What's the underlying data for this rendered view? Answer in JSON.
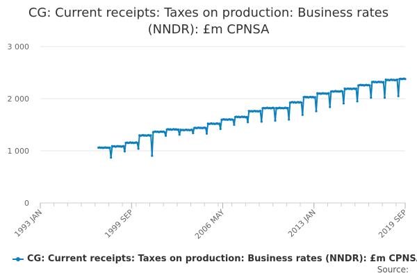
{
  "title_line1": "CG: Current receipts: Taxes on production: Business rates",
  "title_line2": "(NNDR): £m CPNSA",
  "source_label": "Source:",
  "chart_data": {
    "type": "line",
    "title": "CG: Current receipts: Taxes on production: Business rates (NNDR): £m CPNSA",
    "xlabel": "",
    "ylabel": "",
    "x_range": [
      "1993 JAN",
      "2019 SEP"
    ],
    "ylim": [
      0,
      3000
    ],
    "y_ticks": [
      0,
      1000,
      2000,
      3000
    ],
    "y_tick_labels": [
      "0",
      "1 000",
      "2 000",
      "3 000"
    ],
    "x_tick_labels": [
      "1993 JAN",
      "1999 SEP",
      "2006 MAY",
      "2013 JAN",
      "2019 SEP"
    ],
    "grid": "horizontal",
    "legend_position": "bottom",
    "color": "#0b7fbf",
    "series": [
      {
        "name": "CG: Current receipts: Taxes on production: Business rates (NNDR): £m CPNSA",
        "values_by_fiscal_year": [
          {
            "start": "1997 APR",
            "typical": 1060,
            "dips": [
              {
                "month": 11,
                "value": 870
              }
            ]
          },
          {
            "start": "1998 APR",
            "typical": 1085,
            "dips": [
              {
                "month": 11,
                "value": 990
              }
            ]
          },
          {
            "start": "1999 APR",
            "typical": 1155,
            "dips": [
              {
                "month": 11,
                "value": 1040
              }
            ]
          },
          {
            "start": "2000 APR",
            "typical": 1295,
            "dips": [
              {
                "month": 11,
                "value": 905
              }
            ]
          },
          {
            "start": "2001 APR",
            "typical": 1365,
            "dips": [
              {
                "month": 11,
                "value": 1290
              }
            ]
          },
          {
            "start": "2002 APR",
            "typical": 1410,
            "dips": [
              {
                "month": 11,
                "value": 1310
              }
            ]
          },
          {
            "start": "2003 APR",
            "typical": 1400,
            "dips": [
              {
                "month": 11,
                "value": 1340
              }
            ]
          },
          {
            "start": "2004 APR",
            "typical": 1440,
            "dips": [
              {
                "month": 11,
                "value": 1330
              }
            ]
          },
          {
            "start": "2005 APR",
            "typical": 1520,
            "dips": [
              {
                "month": 11,
                "value": 1420
              }
            ]
          },
          {
            "start": "2006 APR",
            "typical": 1600,
            "dips": [
              {
                "month": 11,
                "value": 1500
              }
            ]
          },
          {
            "start": "2007 APR",
            "typical": 1650,
            "dips": [
              {
                "month": 11,
                "value": 1550
              }
            ]
          },
          {
            "start": "2008 APR",
            "typical": 1760,
            "dips": [
              {
                "month": 11,
                "value": 1560
              }
            ]
          },
          {
            "start": "2009 APR",
            "typical": 1820,
            "dips": [
              {
                "month": 11,
                "value": 1580
              }
            ]
          },
          {
            "start": "2010 APR",
            "typical": 1820,
            "dips": [
              {
                "month": 11,
                "value": 1600
              }
            ]
          },
          {
            "start": "2011 APR",
            "typical": 1930,
            "dips": [
              {
                "month": 11,
                "value": 1690
              }
            ]
          },
          {
            "start": "2012 APR",
            "typical": 2030,
            "dips": [
              {
                "month": 11,
                "value": 1760
              }
            ]
          },
          {
            "start": "2013 APR",
            "typical": 2100,
            "dips": [
              {
                "month": 11,
                "value": 1840
              }
            ]
          },
          {
            "start": "2014 APR",
            "typical": 2140,
            "dips": [
              {
                "month": 11,
                "value": 1910
              }
            ]
          },
          {
            "start": "2015 APR",
            "typical": 2190,
            "dips": [
              {
                "month": 11,
                "value": 1950
              }
            ]
          },
          {
            "start": "2016 APR",
            "typical": 2260,
            "dips": [
              {
                "month": 11,
                "value": 2020
              }
            ]
          },
          {
            "start": "2017 APR",
            "typical": 2320,
            "dips": [
              {
                "month": 11,
                "value": 2020
              }
            ]
          },
          {
            "start": "2018 APR",
            "typical": 2360,
            "dips": [
              {
                "month": 11,
                "value": 2050
              }
            ]
          },
          {
            "start": "2019 APR",
            "typical": 2380,
            "months": 6,
            "dips": []
          }
        ]
      }
    ]
  }
}
